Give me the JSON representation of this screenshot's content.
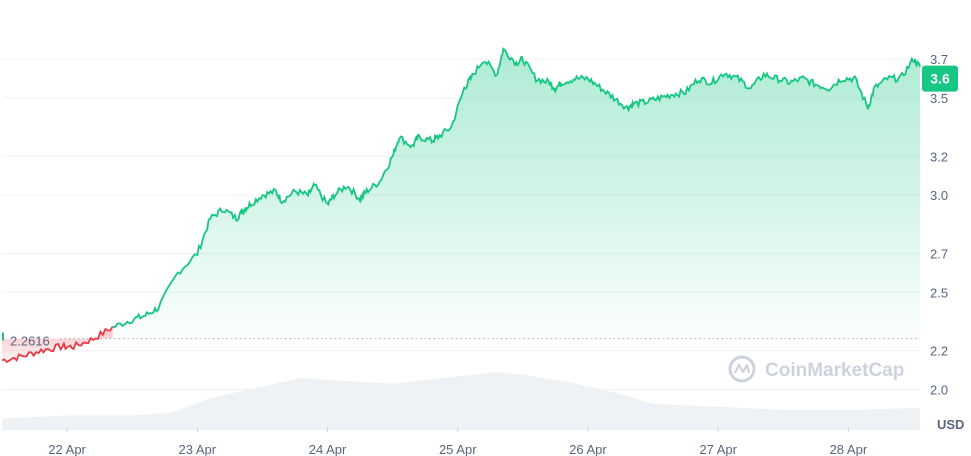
{
  "chart_data": {
    "type": "area",
    "x_label_values": [
      "22 Apr",
      "23 Apr",
      "24 Apr",
      "25 Apr",
      "26 Apr",
      "27 Apr",
      "28 Apr"
    ],
    "y_ticks": [
      "2.0",
      "2.2",
      "2.5",
      "2.7",
      "3.0",
      "3.2",
      "3.5",
      "3.7"
    ],
    "ylim": [
      1.92,
      3.85
    ],
    "xlim": [
      0,
      7.05
    ],
    "reference_value": 2.2616,
    "reference_label": "2.2616",
    "current_value": 3.6,
    "current_label": "3.6",
    "unit_label": "USD",
    "watermark": "CoinMarketCap",
    "grid": true,
    "colors": {
      "up": "#16c784",
      "down": "#ea3943",
      "volume": "#eff2f5"
    },
    "series": [
      {
        "x": [
          0,
          0.15,
          0.3,
          0.45,
          0.55,
          0.7,
          0.85,
          1.0,
          1.1,
          1.2,
          1.35,
          1.5,
          1.6,
          1.7,
          1.8,
          1.85,
          1.9,
          2.0,
          2.1,
          2.15,
          2.25,
          2.35,
          2.4,
          2.5,
          2.55,
          2.65,
          2.75,
          2.8,
          2.9,
          3.0,
          3.05,
          3.15,
          3.2,
          3.3,
          3.35,
          3.45,
          3.55,
          3.6,
          3.7,
          3.8,
          3.85,
          3.95,
          4.0,
          4.1,
          4.2,
          4.25,
          4.3,
          4.4,
          4.5,
          4.6,
          4.7,
          4.8,
          4.85,
          4.95,
          5.05,
          5.15,
          5.25,
          5.35,
          5.45,
          5.55,
          5.65,
          5.75,
          5.85,
          5.95,
          6.05,
          6.15,
          6.25,
          6.35,
          6.45,
          6.55,
          6.65,
          6.7,
          6.8,
          6.9,
          7.0,
          7.05
        ],
        "y": [
          2.15,
          2.17,
          2.2,
          2.22,
          2.22,
          2.26,
          2.32,
          2.36,
          2.38,
          2.42,
          2.6,
          2.7,
          2.88,
          2.93,
          2.88,
          2.92,
          2.95,
          3.0,
          3.02,
          2.97,
          3.02,
          3.0,
          3.05,
          2.95,
          3.0,
          3.05,
          2.98,
          3.02,
          3.07,
          3.2,
          3.3,
          3.25,
          3.3,
          3.28,
          3.3,
          3.35,
          3.55,
          3.6,
          3.7,
          3.62,
          3.75,
          3.68,
          3.7,
          3.6,
          3.58,
          3.55,
          3.58,
          3.6,
          3.6,
          3.55,
          3.5,
          3.45,
          3.47,
          3.48,
          3.5,
          3.52,
          3.53,
          3.6,
          3.58,
          3.63,
          3.6,
          3.55,
          3.62,
          3.6,
          3.58,
          3.6,
          3.57,
          3.55,
          3.6,
          3.6,
          3.45,
          3.55,
          3.6,
          3.6,
          3.7,
          3.66
        ]
      }
    ],
    "volume": {
      "x": [
        0,
        0.5,
        1.0,
        1.3,
        1.6,
        2.0,
        2.3,
        2.6,
        3.0,
        3.4,
        3.8,
        4.0,
        4.3,
        4.7,
        5.0,
        5.3,
        5.7,
        6.0,
        6.5,
        7.05
      ],
      "values": [
        0.2,
        0.25,
        0.25,
        0.3,
        0.55,
        0.75,
        0.9,
        0.85,
        0.8,
        0.9,
        1.0,
        0.95,
        0.85,
        0.65,
        0.45,
        0.42,
        0.38,
        0.35,
        0.35,
        0.38
      ]
    }
  }
}
